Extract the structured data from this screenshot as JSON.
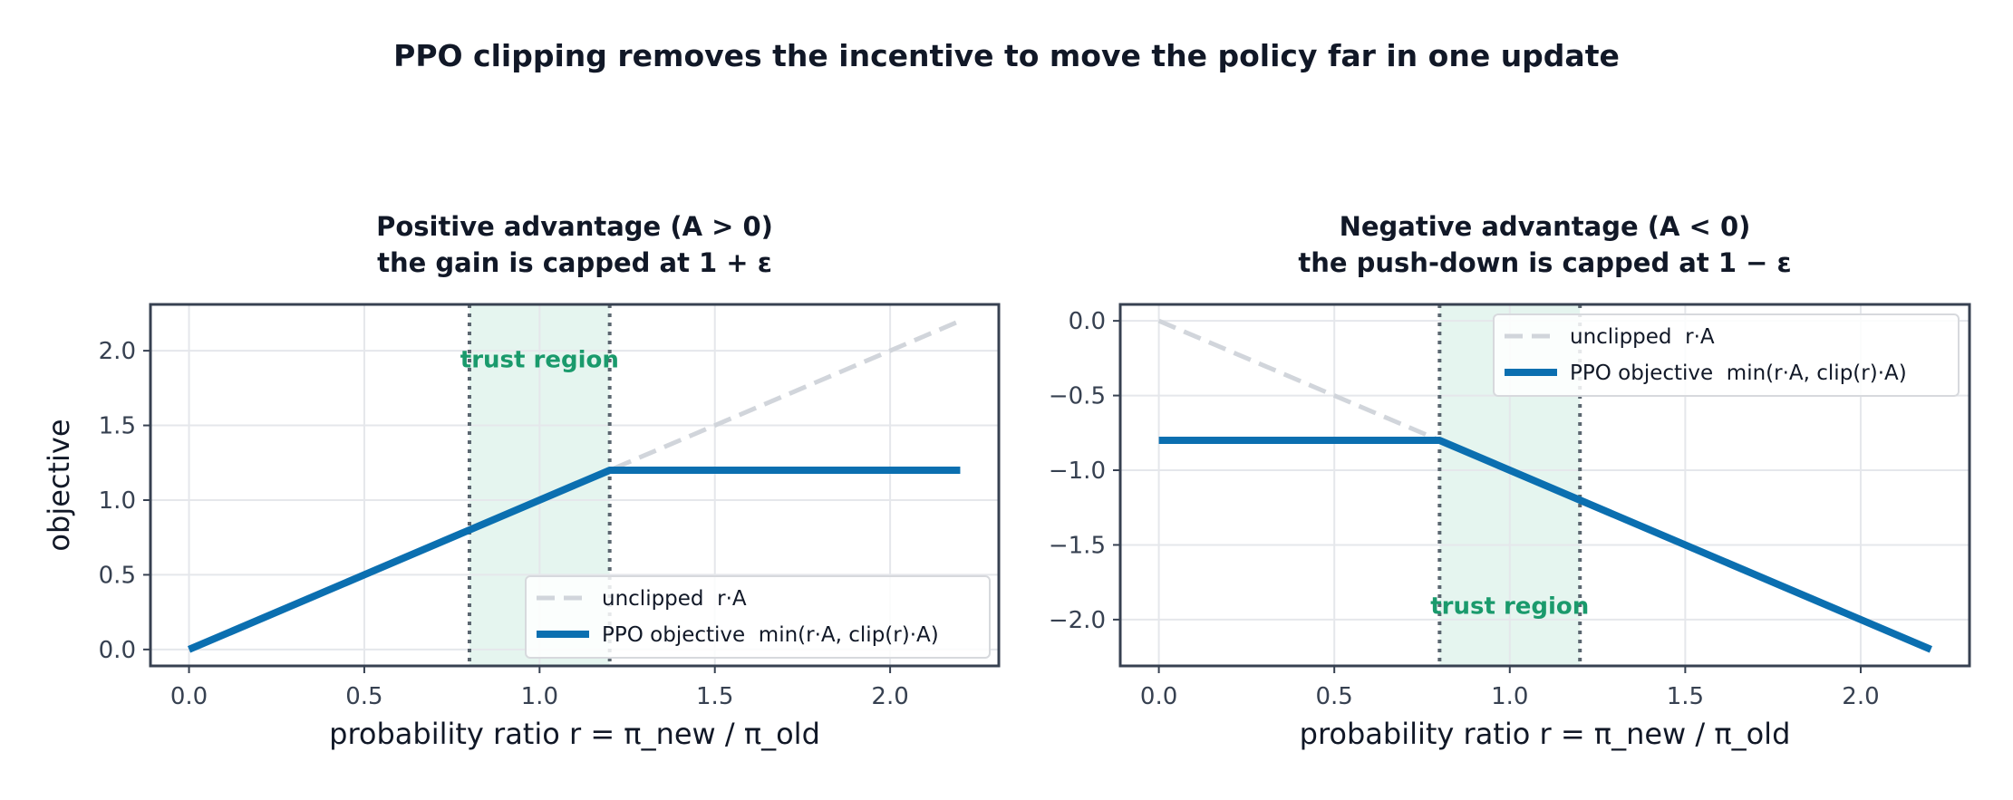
{
  "figure": {
    "title": "PPO clipping removes the incentive to move the policy far in one update"
  },
  "colors": {
    "ppo_line": "#0b6fb0",
    "unclipped_line": "#d1d5db",
    "trust_fill": "#e5f5ef",
    "trust_text": "#1a9a6c",
    "bound_line": "#5b6670",
    "axis": "#374151",
    "grid": "#e5e7eb",
    "text": "#111827",
    "tick_text": "#374151"
  },
  "chart_data": [
    {
      "type": "line",
      "title": "Positive advantage (A > 0)",
      "subtitle": "the gain is capped at 1 + ε",
      "xlabel": "probability ratio  r = π_new / π_old",
      "ylabel": "objective",
      "xlim": [
        -0.11,
        2.31
      ],
      "ylim": [
        -0.11,
        2.31
      ],
      "xticks": [
        0.0,
        0.5,
        1.0,
        1.5,
        2.0
      ],
      "xtick_labels": [
        "0.0",
        "0.5",
        "1.0",
        "1.5",
        "2.0"
      ],
      "yticks": [
        0.0,
        0.5,
        1.0,
        1.5,
        2.0
      ],
      "ytick_labels": [
        "0.0",
        "0.5",
        "1.0",
        "1.5",
        "2.0"
      ],
      "grid": true,
      "trust_region": [
        0.8,
        1.2
      ],
      "trust_label": "trust region",
      "trust_label_pos": [
        1.0,
        1.95
      ],
      "legend_position": "lower-right",
      "series": [
        {
          "name": "unclipped  r·A",
          "style": "dashed",
          "x": [
            0.0,
            2.2
          ],
          "y": [
            0.0,
            2.2
          ]
        },
        {
          "name": "PPO objective  min(r·A, clip(r)·A)",
          "style": "solid",
          "x": [
            0.0,
            1.2,
            2.2
          ],
          "y": [
            0.0,
            1.2,
            1.2
          ]
        }
      ]
    },
    {
      "type": "line",
      "title": "Negative advantage (A < 0)",
      "subtitle": "the push-down is capped at 1 − ε",
      "xlabel": "probability ratio  r = π_new / π_old",
      "ylabel": "",
      "xlim": [
        -0.11,
        2.31
      ],
      "ylim": [
        -2.31,
        0.11
      ],
      "xticks": [
        0.0,
        0.5,
        1.0,
        1.5,
        2.0
      ],
      "xtick_labels": [
        "0.0",
        "0.5",
        "1.0",
        "1.5",
        "2.0"
      ],
      "yticks": [
        0.0,
        -0.5,
        -1.0,
        -1.5,
        -2.0
      ],
      "ytick_labels": [
        "0.0",
        "−0.5",
        "−1.0",
        "−1.5",
        "−2.0"
      ],
      "grid": true,
      "trust_region": [
        0.8,
        1.2
      ],
      "trust_label": "trust region",
      "trust_label_pos": [
        1.0,
        -1.9
      ],
      "legend_position": "upper-right",
      "series": [
        {
          "name": "unclipped  r·A",
          "style": "dashed",
          "x": [
            0.0,
            0.8
          ],
          "y": [
            0.0,
            -0.8
          ]
        },
        {
          "name": "PPO objective  min(r·A, clip(r)·A)",
          "style": "solid",
          "x": [
            0.0,
            0.8,
            2.2
          ],
          "y": [
            -0.8,
            -0.8,
            -2.2
          ]
        }
      ]
    }
  ]
}
